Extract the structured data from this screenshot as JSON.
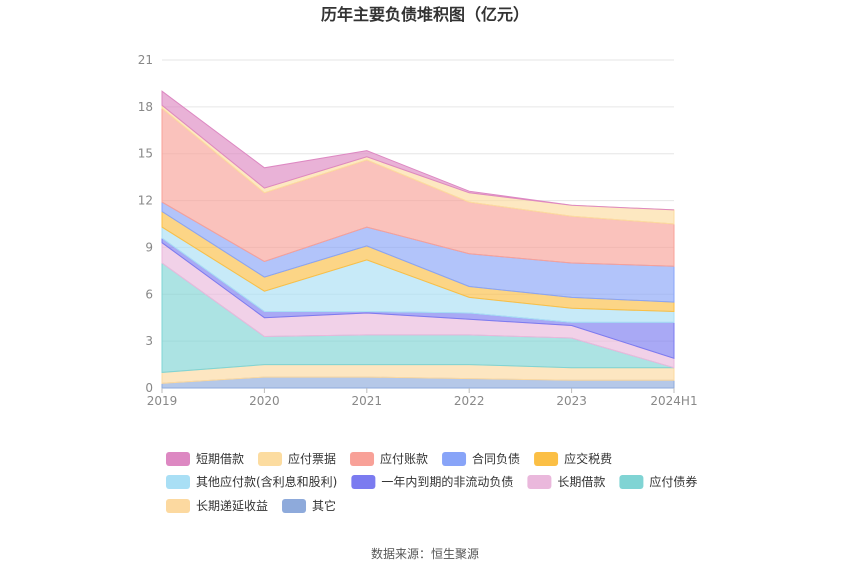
{
  "chart_data": {
    "type": "area",
    "stacked": true,
    "title": "历年主要负债堆积图（亿元）",
    "categories": [
      "2019",
      "2020",
      "2021",
      "2022",
      "2023",
      "2024H1"
    ],
    "ylim": [
      0,
      21
    ],
    "yticks": [
      "0",
      "3",
      "6",
      "9",
      "12",
      "15",
      "18",
      "21"
    ],
    "grid": true,
    "legend_position": "bottom",
    "series": [
      {
        "name": "其它",
        "color": "#8eaadb",
        "values": [
          0.3,
          0.7,
          0.7,
          0.6,
          0.5,
          0.5
        ]
      },
      {
        "name": "长期递延收益",
        "color": "#fcd9a0",
        "values": [
          0.7,
          0.8,
          0.8,
          0.9,
          0.8,
          0.8
        ]
      },
      {
        "name": "应付债券",
        "color": "#80d4d4",
        "values": [
          7.0,
          1.8,
          1.9,
          1.9,
          1.9,
          0.0
        ]
      },
      {
        "name": "长期借款",
        "color": "#eab8dc",
        "values": [
          1.3,
          1.2,
          1.4,
          1.0,
          0.8,
          0.6
        ]
      },
      {
        "name": "一年内到期的非流动负债",
        "color": "#7b7bf0",
        "values": [
          0.3,
          0.4,
          0.1,
          0.4,
          0.2,
          2.3
        ]
      },
      {
        "name": "其他应付款(含利息和股利)",
        "color": "#a9dff5",
        "values": [
          0.7,
          1.3,
          3.3,
          1.0,
          0.9,
          0.7
        ]
      },
      {
        "name": "应交税费",
        "color": "#fbbf45",
        "values": [
          1.0,
          0.9,
          0.9,
          0.7,
          0.7,
          0.6
        ]
      },
      {
        "name": "合同负债",
        "color": "#88a4f8",
        "values": [
          0.6,
          1.0,
          1.2,
          2.1,
          2.2,
          2.3
        ]
      },
      {
        "name": "应付账款",
        "color": "#f8a198",
        "values": [
          6.0,
          4.4,
          4.3,
          3.3,
          3.0,
          2.7
        ]
      },
      {
        "name": "应付票据",
        "color": "#fcdca0",
        "values": [
          0.2,
          0.3,
          0.2,
          0.6,
          0.7,
          0.9
        ]
      },
      {
        "name": "短期借款",
        "color": "#dd88c2",
        "values": [
          0.9,
          1.3,
          0.4,
          0.1,
          0.0,
          0.0
        ]
      }
    ],
    "legend_order": [
      "短期借款",
      "应付票据",
      "应付账款",
      "合同负债",
      "应交税费",
      "其他应付款(含利息和股利)",
      "一年内到期的非流动负债",
      "长期借款",
      "应付债券",
      "长期递延收益",
      "其它"
    ]
  },
  "source_text": "数据来源：恒生聚源"
}
